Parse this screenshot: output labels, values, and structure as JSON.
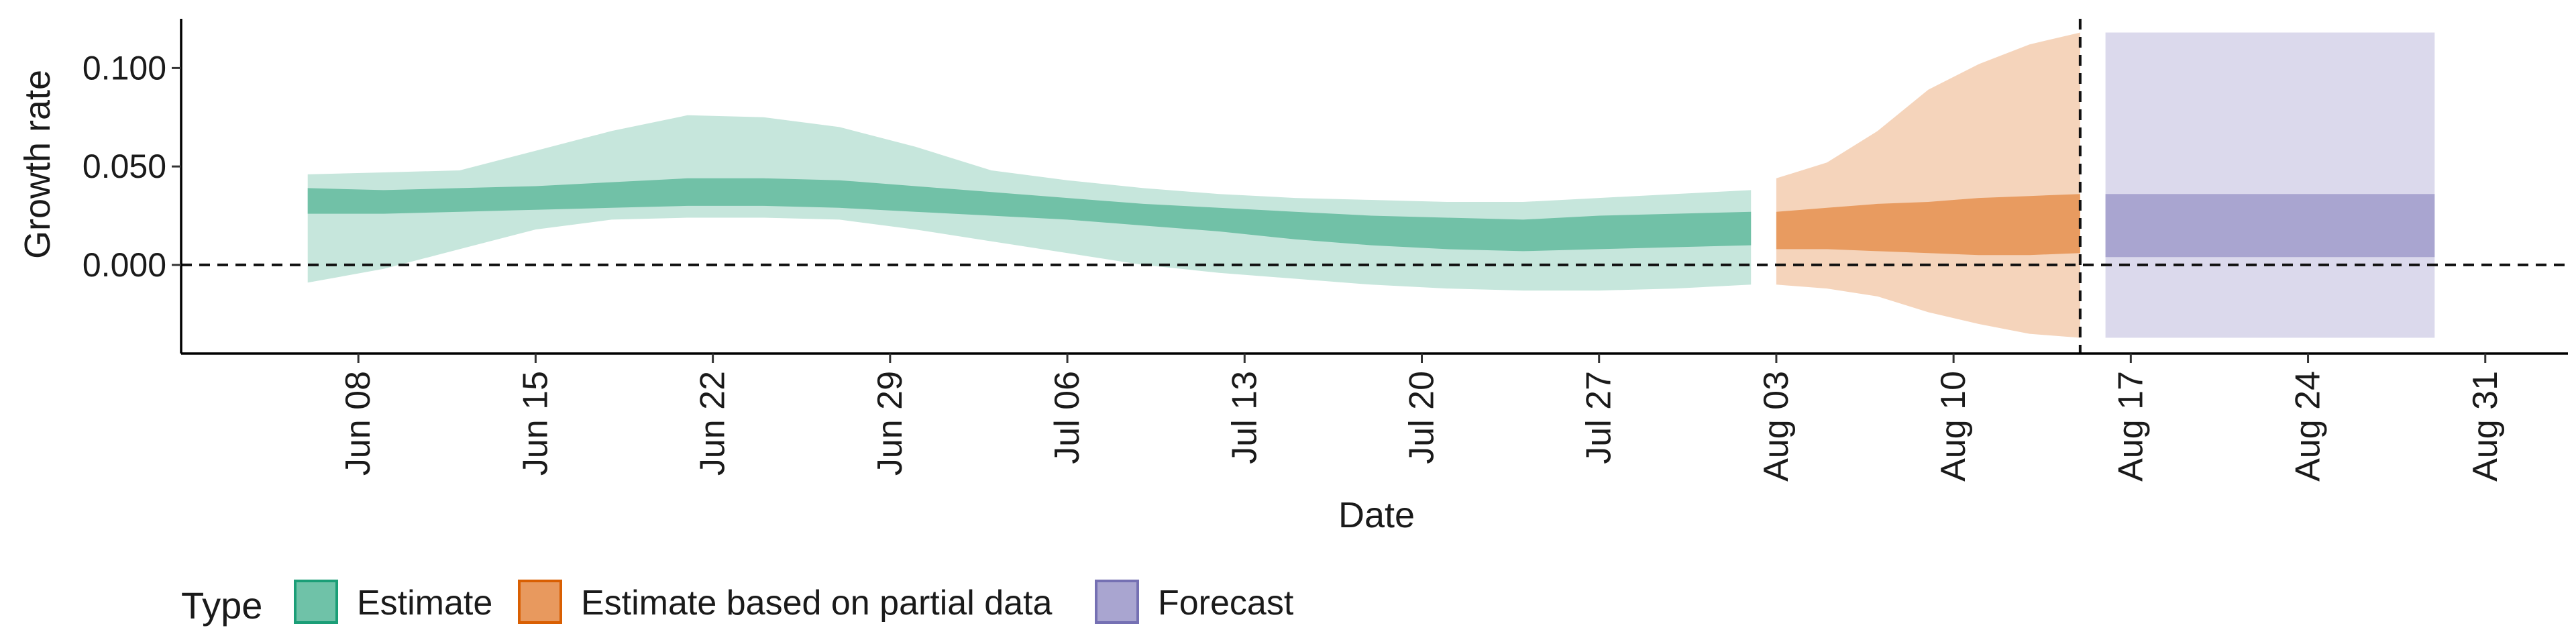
{
  "chart_data": {
    "type": "area",
    "xlabel": "Date",
    "ylabel": "Growth rate",
    "x_ticks": [
      "Jun 08",
      "Jun 15",
      "Jun 22",
      "Jun 29",
      "Jul 06",
      "Jul 13",
      "Jul 20",
      "Jul 27",
      "Aug 03",
      "Aug 10",
      "Aug 17",
      "Aug 24",
      "Aug 31"
    ],
    "y_ticks": [
      "0.000",
      "0.050",
      "0.100"
    ],
    "ylim": [
      -0.045,
      0.125
    ],
    "xlim": [
      "2020-06-01",
      "2020-09-03"
    ],
    "reference_lines": {
      "horizontal_y": 0.0,
      "vertical_date": "2020-08-15",
      "style": "dashed"
    },
    "legend": {
      "title": "Type",
      "position": "bottom-left",
      "entries": [
        {
          "label": "Estimate",
          "fill": "#6fc2a8",
          "stroke": "#1b9e77"
        },
        {
          "label": "Estimate based on partial data",
          "fill": "#e8995e",
          "stroke": "#d95f02"
        },
        {
          "label": "Forecast",
          "fill": "#a9a5d0",
          "stroke": "#7570b3"
        }
      ]
    },
    "series": [
      {
        "name": "Estimate",
        "color_outer": "#c6e6dc",
        "color_inner": "#71c1a7",
        "points": [
          {
            "date": "2020-06-06",
            "lo90": -0.009,
            "lo50": 0.026,
            "hi50": 0.039,
            "hi90": 0.046
          },
          {
            "date": "2020-06-09",
            "lo90": -0.002,
            "lo50": 0.026,
            "hi50": 0.038,
            "hi90": 0.047
          },
          {
            "date": "2020-06-12",
            "lo90": 0.008,
            "lo50": 0.027,
            "hi50": 0.039,
            "hi90": 0.048
          },
          {
            "date": "2020-06-15",
            "lo90": 0.018,
            "lo50": 0.028,
            "hi50": 0.04,
            "hi90": 0.058
          },
          {
            "date": "2020-06-18",
            "lo90": 0.023,
            "lo50": 0.029,
            "hi50": 0.042,
            "hi90": 0.068
          },
          {
            "date": "2020-06-21",
            "lo90": 0.024,
            "lo50": 0.03,
            "hi50": 0.044,
            "hi90": 0.076
          },
          {
            "date": "2020-06-24",
            "lo90": 0.024,
            "lo50": 0.03,
            "hi50": 0.044,
            "hi90": 0.075
          },
          {
            "date": "2020-06-27",
            "lo90": 0.023,
            "lo50": 0.029,
            "hi50": 0.043,
            "hi90": 0.07
          },
          {
            "date": "2020-06-30",
            "lo90": 0.018,
            "lo50": 0.027,
            "hi50": 0.04,
            "hi90": 0.06
          },
          {
            "date": "2020-07-03",
            "lo90": 0.012,
            "lo50": 0.025,
            "hi50": 0.037,
            "hi90": 0.048
          },
          {
            "date": "2020-07-06",
            "lo90": 0.006,
            "lo50": 0.023,
            "hi50": 0.034,
            "hi90": 0.043
          },
          {
            "date": "2020-07-09",
            "lo90": 0.0,
            "lo50": 0.02,
            "hi50": 0.031,
            "hi90": 0.039
          },
          {
            "date": "2020-07-12",
            "lo90": -0.004,
            "lo50": 0.017,
            "hi50": 0.029,
            "hi90": 0.036
          },
          {
            "date": "2020-07-15",
            "lo90": -0.007,
            "lo50": 0.013,
            "hi50": 0.027,
            "hi90": 0.034
          },
          {
            "date": "2020-07-18",
            "lo90": -0.01,
            "lo50": 0.01,
            "hi50": 0.025,
            "hi90": 0.033
          },
          {
            "date": "2020-07-21",
            "lo90": -0.012,
            "lo50": 0.008,
            "hi50": 0.024,
            "hi90": 0.032
          },
          {
            "date": "2020-07-24",
            "lo90": -0.013,
            "lo50": 0.007,
            "hi50": 0.023,
            "hi90": 0.032
          },
          {
            "date": "2020-07-27",
            "lo90": -0.013,
            "lo50": 0.008,
            "hi50": 0.025,
            "hi90": 0.034
          },
          {
            "date": "2020-07-30",
            "lo90": -0.012,
            "lo50": 0.009,
            "hi50": 0.026,
            "hi90": 0.036
          },
          {
            "date": "2020-08-02",
            "lo90": -0.01,
            "lo50": 0.01,
            "hi50": 0.027,
            "hi90": 0.038
          }
        ]
      },
      {
        "name": "Estimate based on partial data",
        "color_outer": "#f5d4bb",
        "color_inner": "#e89b60",
        "points": [
          {
            "date": "2020-08-03",
            "lo90": -0.01,
            "lo50": 0.008,
            "hi50": 0.027,
            "hi90": 0.044
          },
          {
            "date": "2020-08-05",
            "lo90": -0.012,
            "lo50": 0.008,
            "hi50": 0.029,
            "hi90": 0.052
          },
          {
            "date": "2020-08-07",
            "lo90": -0.016,
            "lo50": 0.007,
            "hi50": 0.031,
            "hi90": 0.068
          },
          {
            "date": "2020-08-09",
            "lo90": -0.024,
            "lo50": 0.006,
            "hi50": 0.032,
            "hi90": 0.089
          },
          {
            "date": "2020-08-11",
            "lo90": -0.03,
            "lo50": 0.005,
            "hi50": 0.034,
            "hi90": 0.102
          },
          {
            "date": "2020-08-13",
            "lo90": -0.035,
            "lo50": 0.005,
            "hi50": 0.035,
            "hi90": 0.112
          },
          {
            "date": "2020-08-15",
            "lo90": -0.037,
            "lo50": 0.006,
            "hi50": 0.036,
            "hi90": 0.118
          }
        ]
      },
      {
        "name": "Forecast",
        "color_outer": "#dbd9ec",
        "color_inner": "#a9a5d0",
        "points": [
          {
            "date": "2020-08-16",
            "lo90": -0.037,
            "lo50": 0.004,
            "hi50": 0.036,
            "hi90": 0.118
          },
          {
            "date": "2020-08-29",
            "lo90": -0.037,
            "lo50": 0.004,
            "hi50": 0.036,
            "hi90": 0.118
          }
        ]
      }
    ]
  }
}
